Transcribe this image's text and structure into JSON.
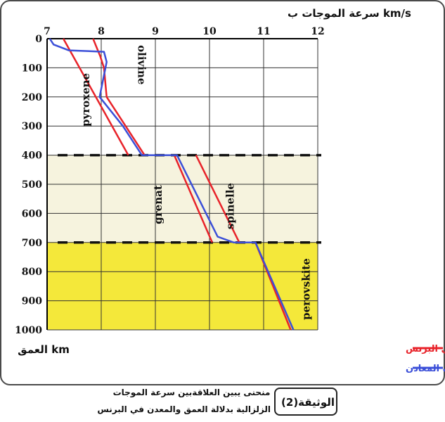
{
  "chart_data": {
    "type": "line",
    "x_title": "سرعة الموجات ب km/s",
    "y_title": "العمق km",
    "x_ticks": [
      "7",
      "8",
      "9",
      "10",
      "11",
      "12"
    ],
    "y_ticks": [
      "0",
      "100",
      "200",
      "300",
      "400",
      "500",
      "600",
      "700",
      "800",
      "900",
      "1000"
    ],
    "xlim": [
      7,
      12
    ],
    "ylim": [
      0,
      1000
    ],
    "y_inverted": true,
    "grid": true,
    "discontinuities": [
      400,
      700
    ],
    "zones": [
      {
        "from": 400,
        "to": 700,
        "color": "#f6f3de"
      },
      {
        "from": 700,
        "to": 1000,
        "color": "#f4e83a"
      }
    ],
    "series": [
      {
        "name": "منحنى انتشار الموجات P في البرنس",
        "color": "#e8232a",
        "segments": [
          [
            [
              7.3,
              0
            ],
            [
              8.5,
              400
            ]
          ],
          [
            [
              7.85,
              0
            ],
            [
              7.98,
              60
            ],
            [
              8.05,
              100
            ],
            [
              8.1,
              200
            ],
            [
              8.8,
              400
            ]
          ],
          [
            [
              9.35,
              400
            ],
            [
              10.05,
              700
            ]
          ],
          [
            [
              9.75,
              400
            ],
            [
              10.55,
              700
            ]
          ],
          [
            [
              10.85,
              700
            ],
            [
              11.5,
              1000
            ]
          ]
        ]
      },
      {
        "name": "منحنى انتشار الموجات P في مختلف المعادن",
        "color": "#3b4fd8",
        "segments": [
          [
            [
              7.05,
              0
            ],
            [
              7.12,
              20
            ],
            [
              7.4,
              40
            ],
            [
              8.05,
              45
            ],
            [
              8.1,
              80
            ],
            [
              7.97,
              200
            ],
            [
              8.4,
              300
            ],
            [
              8.75,
              400
            ],
            [
              9.4,
              400
            ],
            [
              10.15,
              680
            ],
            [
              10.45,
              700
            ],
            [
              10.85,
              700
            ],
            [
              11.55,
              1000
            ]
          ]
        ]
      }
    ],
    "annotations": [
      {
        "text": "pyroxene",
        "x": 7.78,
        "y": 210,
        "rotate": -90
      },
      {
        "text": "olivine",
        "x": 8.68,
        "y": 90,
        "rotate": 90
      },
      {
        "text": "grenat",
        "x": 9.12,
        "y": 570,
        "rotate": -90
      },
      {
        "text": "spinelle",
        "x": 10.45,
        "y": 575,
        "rotate": -90
      },
      {
        "text": "perovskite",
        "x": 11.85,
        "y": 860,
        "rotate": -90
      }
    ],
    "legend": [
      {
        "label": "منحنى انتشار الموجات P في البرنس",
        "color": "#e8232a"
      },
      {
        "label": "منحنى انتشار الموجات P في مختلف المعادن",
        "color": "#3b4fd8"
      }
    ]
  },
  "caption": {
    "doc_label": "الوثيقة(2)",
    "line1": "منحنى يبين العلاقةبين سرعة الموجات",
    "line2": "الزلزالية بدلالة العمق والمعدن في البرنس"
  }
}
